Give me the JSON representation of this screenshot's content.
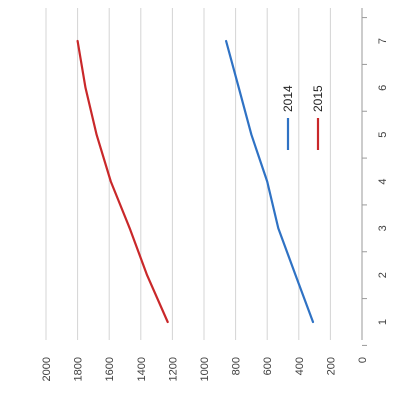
{
  "chart_data": {
    "type": "line",
    "orientation": "rotated-90-clockwise",
    "title": "",
    "xlabel": "",
    "ylabel": "",
    "x": [
      1,
      2,
      3,
      4,
      5,
      6,
      7
    ],
    "x_tick_labels": [
      "1",
      "2",
      "3",
      "4",
      "5",
      "6",
      "7"
    ],
    "y_tick_labels": [
      "0",
      "200",
      "400",
      "600",
      "800",
      "1000",
      "1200",
      "1400",
      "1600",
      "1800",
      "2000"
    ],
    "ylim": [
      0,
      2000
    ],
    "xlim": [
      1,
      7
    ],
    "grid": true,
    "legend_position": "right",
    "series": [
      {
        "name": "2014",
        "color": "#2f72c4",
        "values": [
          310,
          420,
          530,
          600,
          700,
          780,
          860
        ]
      },
      {
        "name": "2015",
        "color": "#c9282a",
        "values": [
          1230,
          1360,
          1470,
          1590,
          1680,
          1750,
          1800
        ]
      }
    ]
  }
}
